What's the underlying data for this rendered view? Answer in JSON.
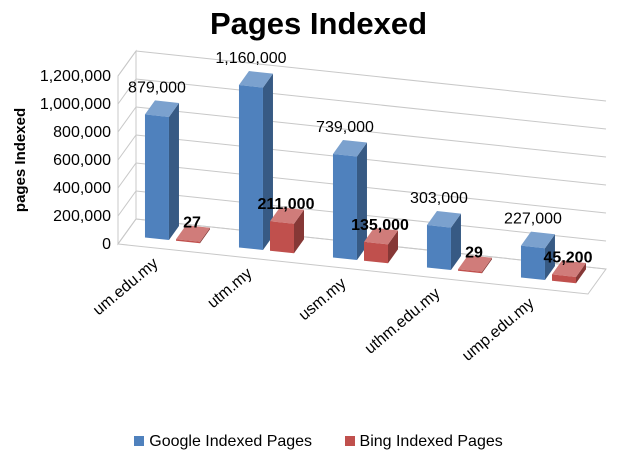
{
  "chart_data": {
    "type": "bar",
    "title": "Pages Indexed",
    "ylabel": "pages Indexed",
    "xlabel": "",
    "ylim": [
      0,
      1200000
    ],
    "y_ticks": [
      "0",
      "200,000",
      "400,000",
      "600,000",
      "800,000",
      "1,000,000",
      "1,200,000"
    ],
    "categories": [
      "um.edu.my",
      "utm.my",
      "usm.my",
      "uthm.edu.my",
      "ump.edu.my"
    ],
    "series": [
      {
        "name": "Google Indexed Pages",
        "values": [
          879000,
          1160000,
          739000,
          303000,
          227000
        ],
        "labels": [
          "879,000",
          "1,160,000",
          "739,000",
          "303,000",
          "227,000"
        ],
        "color": "#4f81bd"
      },
      {
        "name": "Bing Indexed Pages",
        "values": [
          27,
          211000,
          135000,
          29,
          45200
        ],
        "labels": [
          "27",
          "211,000",
          "135,000",
          "29",
          "45,200"
        ],
        "color": "#c0504d"
      }
    ],
    "legend_position": "bottom",
    "grid": true,
    "style": "3d-clustered-column"
  }
}
